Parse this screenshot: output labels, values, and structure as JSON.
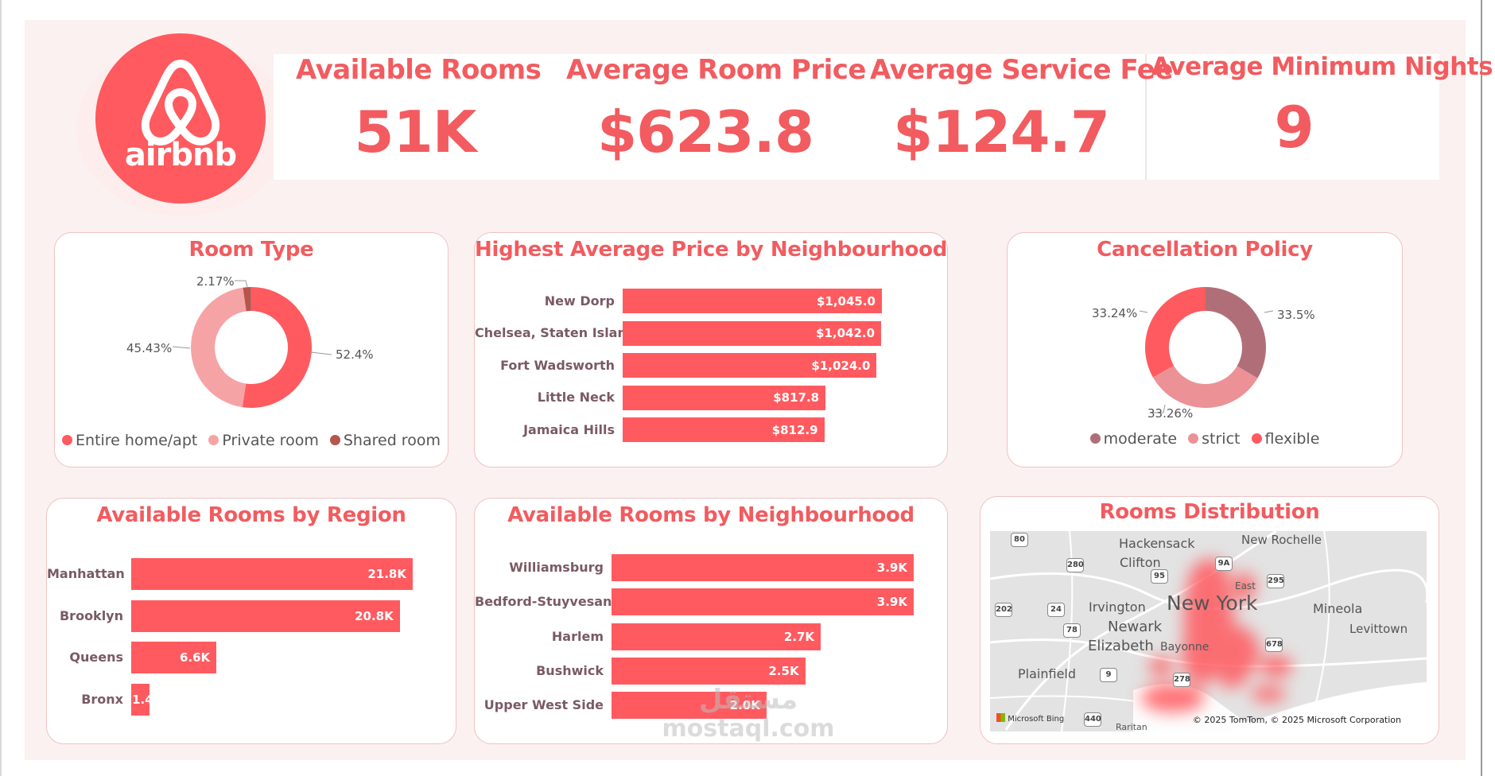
{
  "logo": {
    "text": "airbnb"
  },
  "kpis": [
    {
      "title": "Available Rooms",
      "value": "51K"
    },
    {
      "title": "Average Room Price",
      "value": "$623.8"
    },
    {
      "title": "Average Service Fee",
      "value": "$124.7"
    },
    {
      "title": "Average Minimum Nights",
      "value": "9"
    }
  ],
  "room_type": {
    "title": "Room Type",
    "labels": {
      "entire": "52.4%",
      "private": "45.43%",
      "shared": "2.17%"
    },
    "legend": [
      "Entire home/apt",
      "Private room",
      "Shared room"
    ],
    "colors": [
      "#ff5a5f",
      "#f6a3a5",
      "#b5554c"
    ]
  },
  "price_by_neighbourhood": {
    "title": "Highest Average Price by Neighbourhood"
  },
  "cancellation": {
    "title": "Cancellation Policy",
    "labels": {
      "moderate": "33.5%",
      "strict": "33.26%",
      "flexible": "33.24%"
    },
    "legend": [
      "moderate",
      "strict",
      "flexible"
    ],
    "colors": [
      "#b06f78",
      "#ec9196",
      "#ff5a5f"
    ]
  },
  "region": {
    "title": "Available Rooms by Region"
  },
  "neighbourhood": {
    "title": "Available Rooms by Neighbourhood"
  },
  "map": {
    "title": "Rooms Distribution",
    "places": [
      "Hackensack",
      "New Rochelle",
      "Clifton",
      "East",
      "Irvington",
      "New York",
      "Mineola",
      "Newark",
      "Levittown",
      "Elizabeth",
      "Bayonne",
      "Plainfield",
      "Raritan"
    ],
    "shields": [
      "80",
      "280",
      "9A",
      "95",
      "295",
      "202",
      "24",
      "78",
      "678",
      "9",
      "278",
      "440"
    ],
    "copyright": "© 2025 TomTom, © 2025 Microsoft Corporation",
    "provider": "Microsoft Bing"
  },
  "watermark": {
    "line1": "مستقل",
    "line2": "mostaql.com"
  },
  "chart_data": [
    {
      "type": "pie",
      "title": "Room Type",
      "categories": [
        "Entire home/apt",
        "Private room",
        "Shared room"
      ],
      "values": [
        52.4,
        45.43,
        2.17
      ]
    },
    {
      "type": "bar",
      "title": "Highest Average Price by Neighbourhood",
      "categories": [
        "New Dorp",
        "Chelsea, Staten Island",
        "Fort Wadsworth",
        "Little Neck",
        "Jamaica Hills"
      ],
      "values": [
        1045.0,
        1042.0,
        1024.0,
        817.8,
        812.9
      ],
      "value_labels": [
        "$1,045.0",
        "$1,042.0",
        "$1,024.0",
        "$817.8",
        "$812.9"
      ]
    },
    {
      "type": "pie",
      "title": "Cancellation Policy",
      "categories": [
        "moderate",
        "strict",
        "flexible"
      ],
      "values": [
        33.5,
        33.26,
        33.24
      ]
    },
    {
      "type": "bar",
      "title": "Available Rooms by Region",
      "categories": [
        "Manhattan",
        "Brooklyn",
        "Queens",
        "Bronx"
      ],
      "values": [
        21.8,
        20.8,
        6.6,
        1.4
      ],
      "value_labels": [
        "21.8K",
        "20.8K",
        "6.6K",
        "1.4"
      ]
    },
    {
      "type": "bar",
      "title": "Available Rooms by Neighbourhood",
      "categories": [
        "Williamsburg",
        "Bedford-Stuyvesant",
        "Harlem",
        "Bushwick",
        "Upper West Side"
      ],
      "values": [
        3.9,
        3.9,
        2.7,
        2.5,
        2.0
      ],
      "value_labels": [
        "3.9K",
        "3.9K",
        "2.7K",
        "2.5K",
        "2.0K"
      ]
    }
  ]
}
